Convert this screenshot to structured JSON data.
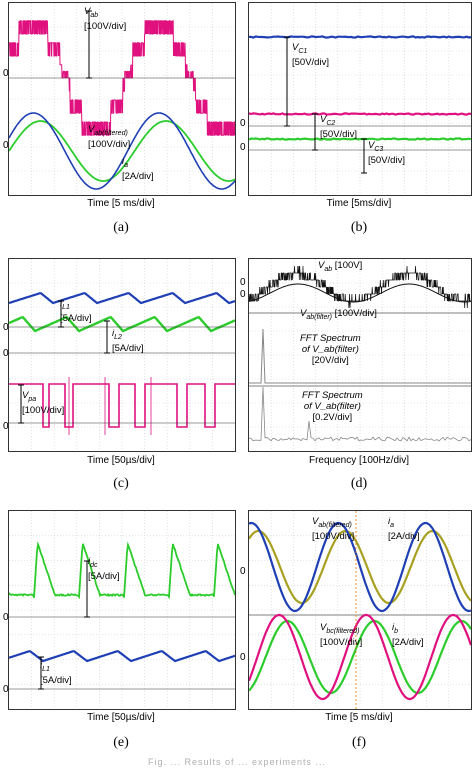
{
  "panels": [
    {
      "id": "a",
      "label": "(a)",
      "xlabel": "Time [5 ms/div]",
      "annotations": [
        {
          "text": "V",
          "sub": "ab",
          "lines": [
            "[100V/div]"
          ]
        },
        {
          "text": "V",
          "sub": "ab(filtered)",
          "lines": [
            "[100V/div]"
          ]
        },
        {
          "text": "i",
          "sub": "a",
          "lines": [
            "[2A/div]"
          ]
        }
      ],
      "zero_marks": [
        "0",
        "0"
      ]
    },
    {
      "id": "b",
      "label": "(b)",
      "xlabel": "Time [5ms/div]",
      "annotations": [
        {
          "text": "V",
          "sub": "C1",
          "lines": [
            "[50V/div]"
          ]
        },
        {
          "text": "V",
          "sub": "C2",
          "lines": [
            "[50V/div]"
          ]
        },
        {
          "text": "V",
          "sub": "C3",
          "lines": [
            "[50V/div]"
          ]
        }
      ],
      "zero_marks": [
        "0",
        "0"
      ]
    },
    {
      "id": "c",
      "label": "(c)",
      "xlabel": "Time [50µs/div]",
      "annotations": [
        {
          "text": "i",
          "sub": "L1",
          "lines": [
            "[5A/div]"
          ]
        },
        {
          "text": "i",
          "sub": "L2",
          "lines": [
            "[5A/div]"
          ]
        },
        {
          "text": "V",
          "sub": "pa",
          "lines": [
            "[100V/div]"
          ]
        }
      ],
      "zero_marks": [
        "0",
        "0",
        "0"
      ]
    },
    {
      "id": "d",
      "label": "(d)",
      "xlabel": "Frequency [100Hz/div]",
      "annotations": [
        {
          "text": "V",
          "sub": "ab",
          "lines": [
            "[100V]"
          ]
        },
        {
          "text": "V",
          "sub": "ab(filter)",
          "lines": [
            "[100V/div]"
          ]
        },
        {
          "text": "FFT Spectrum",
          "sub": "",
          "lines": [
            "of V_ab(filter)",
            "[20V/div]"
          ]
        },
        {
          "text": "FFT Spectrum",
          "sub": "",
          "lines": [
            "of V_ab(filter)",
            "[0.2V/div]"
          ]
        }
      ],
      "zero_marks": [
        "0",
        "0"
      ]
    },
    {
      "id": "e",
      "label": "(e)",
      "xlabel": "Time [50µs/div]",
      "annotations": [
        {
          "text": "i",
          "sub": "dc",
          "lines": [
            "[5A/div]"
          ]
        },
        {
          "text": "i",
          "sub": "L1",
          "lines": [
            "[5A/div]"
          ]
        }
      ],
      "zero_marks": [
        "0",
        "0"
      ]
    },
    {
      "id": "f",
      "label": "(f)",
      "xlabel": "Time [5 ms/div]",
      "annotations": [
        {
          "text": "V",
          "sub": "ab(filtered)",
          "lines": [
            "[100V/div]"
          ]
        },
        {
          "text": "i",
          "sub": "a",
          "lines": [
            "[2A/div]"
          ]
        },
        {
          "text": "V",
          "sub": "bc(filtered)",
          "lines": [
            "[100V/div]"
          ]
        },
        {
          "text": "i",
          "sub": "b",
          "lines": [
            "[2A/div]"
          ]
        }
      ],
      "zero_marks": [
        "0",
        "0"
      ]
    }
  ],
  "chart_data": [
    {
      "type": "line",
      "panel": "a",
      "xlabel": "Time [5 ms/div]",
      "series": [
        {
          "name": "Vab",
          "color": "#e0117f",
          "shape": "multilevel PWM",
          "amplitude_div": 1.8,
          "cycles": 1.8
        },
        {
          "name": "Vab(filtered)",
          "color": "#1f3fb5",
          "shape": "sine",
          "amplitude_div": 1.0,
          "cycles": 1.8
        },
        {
          "name": "ia",
          "color": "#2bcc2b",
          "shape": "sine",
          "amplitude_div": 0.6,
          "cycles": 1.8
        }
      ]
    },
    {
      "type": "line",
      "panel": "b",
      "xlabel": "Time [5ms/div]",
      "series": [
        {
          "name": "VC1",
          "color": "#1f3fb5",
          "shape": "dc",
          "level_div": 3.5
        },
        {
          "name": "VC2",
          "color": "#e0117f",
          "shape": "dc",
          "level_div": 0.9
        },
        {
          "name": "VC3",
          "color": "#2bcc2b",
          "shape": "dc",
          "level_div": 0.6
        }
      ]
    },
    {
      "type": "line",
      "panel": "c",
      "xlabel": "Time [50µs/div]",
      "series": [
        {
          "name": "iL1",
          "color": "#1f3fb5",
          "shape": "sawtooth"
        },
        {
          "name": "iL2",
          "color": "#2bcc2b",
          "shape": "sawtooth"
        },
        {
          "name": "Vpa",
          "color": "#e0117f",
          "shape": "pulse"
        }
      ]
    },
    {
      "type": "line",
      "panel": "d",
      "xlabel": "Frequency [100Hz/div]",
      "series": [
        {
          "name": "Vab",
          "color": "#111111",
          "shape": "multilevel PWM"
        },
        {
          "name": "Vab(filter)",
          "color": "#111111",
          "shape": "sine"
        },
        {
          "name": "FFT Spectrum of Vab(filter) [20V/div]",
          "color": "#888888",
          "shape": "spectrum"
        },
        {
          "name": "FFT Spectrum of Vab(filter) [0.2V/div]",
          "color": "#888888",
          "shape": "spectrum"
        }
      ]
    },
    {
      "type": "line",
      "panel": "e",
      "xlabel": "Time [50µs/div]",
      "series": [
        {
          "name": "idc",
          "color": "#2bcc2b",
          "shape": "spike decay"
        },
        {
          "name": "iL1",
          "color": "#1f3fb5",
          "shape": "sawtooth"
        }
      ]
    },
    {
      "type": "line",
      "panel": "f",
      "xlabel": "Time [5 ms/div]",
      "series": [
        {
          "name": "Vab(filtered)",
          "color": "#1f3fb5",
          "shape": "sine"
        },
        {
          "name": "ia",
          "color": "#a8a020",
          "shape": "sine"
        },
        {
          "name": "Vbc(filtered)",
          "color": "#e0117f",
          "shape": "sine"
        },
        {
          "name": "ib",
          "color": "#2bcc2b",
          "shape": "sine"
        }
      ]
    }
  ],
  "footer": "Fig. ... Results of ... experiments ..."
}
